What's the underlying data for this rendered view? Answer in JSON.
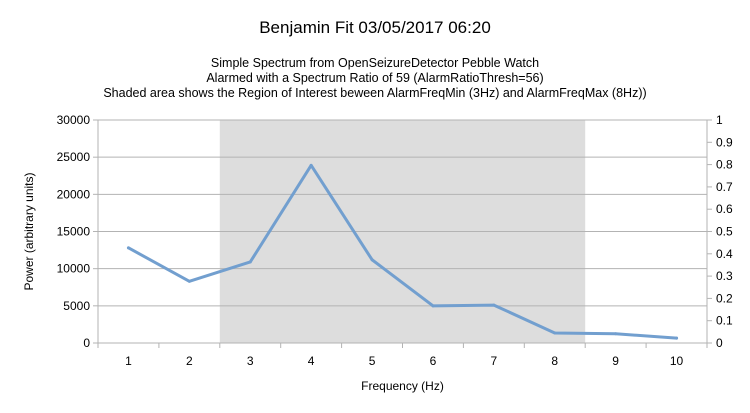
{
  "header": {
    "title": "Benjamin Fit 03/05/2017 06:20",
    "subtitle_lines": [
      "Simple Spectrum from OpenSeizureDetector Pebble Watch",
      "Alarmed with a Spectrum Ratio of 59 (AlarmRatioThresh=56)",
      "Shaded area shows the Region of Interest beween AlarmFreqMin (3Hz) and AlarmFreqMax (8Hz))"
    ]
  },
  "chart_data": {
    "type": "line",
    "title": "Benjamin Fit 03/05/2017 06:20",
    "xlabel": "Frequency (Hz)",
    "ylabel": "Power (arbitrary units)",
    "categories": [
      1,
      2,
      3,
      4,
      5,
      6,
      7,
      8,
      9,
      10
    ],
    "series": [
      {
        "values": [
          12800,
          8300,
          10900,
          23900,
          11200,
          5000,
          5100,
          1350,
          1250,
          650
        ]
      }
    ],
    "ylim": [
      0,
      30000
    ],
    "y_ticks": [
      "0",
      "5000",
      "10000",
      "15000",
      "20000",
      "25000",
      "30000"
    ],
    "y2lim": [
      0,
      1
    ],
    "y2_ticks": [
      "0",
      "0.1",
      "0.2",
      "0.3",
      "0.4",
      "0.5",
      "0.6",
      "0.7",
      "0.8",
      "0.9",
      "1"
    ],
    "shaded_region": {
      "from": 3,
      "to": 8
    },
    "grid": "horizontal",
    "legend": "none",
    "colors": {
      "line": "#729fcf",
      "shade": "#dddddd",
      "grid": "#b3b3b3"
    }
  }
}
